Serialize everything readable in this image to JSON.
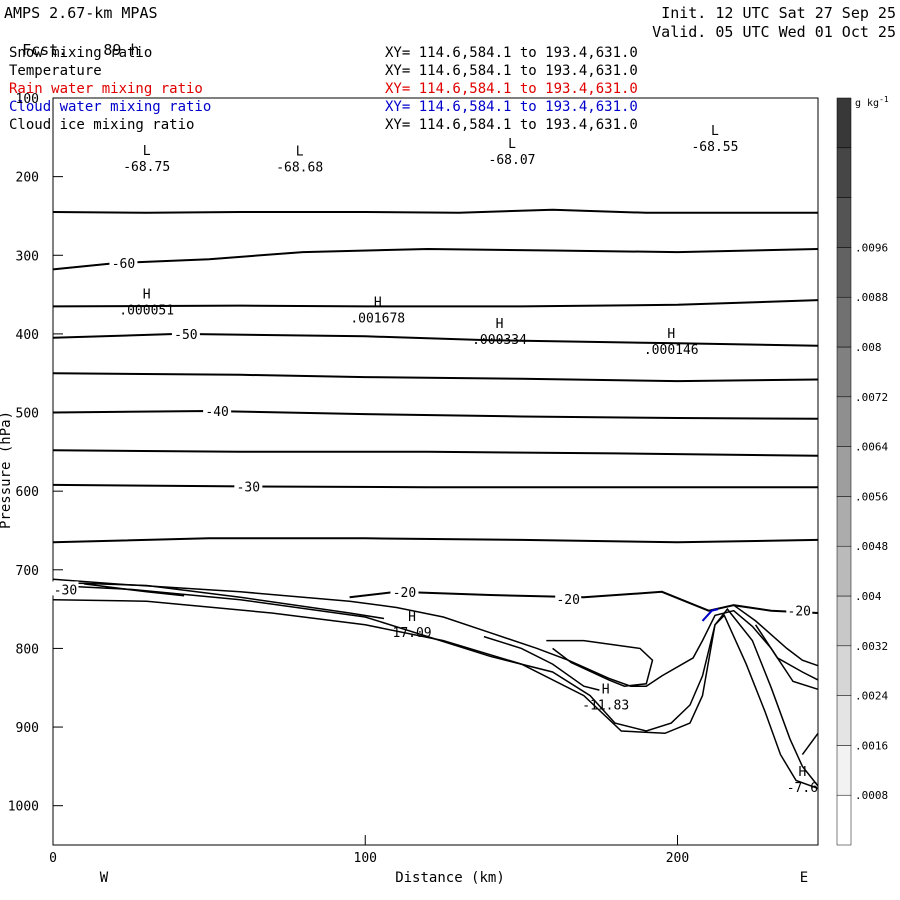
{
  "header": {
    "model": "AMPS 2.67-km MPAS",
    "fcst_label": "Fcst.",
    "fcst_value": "89 h",
    "init": "Init. 12 UTC Sat 27 Sep 25",
    "valid": "Valid. 05 UTC Wed 01 Oct 25"
  },
  "legend": [
    {
      "name": "Snow mixing ratio",
      "xy": "XY= 114.6,584.1 to 193.4,631.0",
      "color": "#000000"
    },
    {
      "name": "Temperature",
      "xy": "XY= 114.6,584.1 to 193.4,631.0",
      "color": "#000000"
    },
    {
      "name": "Rain water mixing ratio",
      "xy": "XY= 114.6,584.1 to 193.4,631.0",
      "color": "#e00000"
    },
    {
      "name": "Cloud water mixing ratio",
      "xy": "XY= 114.6,584.1 to 193.4,631.0",
      "color": "#0000cc"
    },
    {
      "name": "Cloud ice mixing ratio",
      "xy": "XY= 114.6,584.1 to 193.4,631.0",
      "color": "#000000"
    }
  ],
  "chart_data": {
    "type": "line",
    "subtype": "cross-section contour",
    "xlabel": "Distance (km)",
    "ylabel": "Pressure (hPa)",
    "xlim": [
      0,
      245
    ],
    "ylim": [
      1050,
      100
    ],
    "x_ticks": [
      0,
      100,
      200
    ],
    "y_ticks": [
      100,
      200,
      300,
      400,
      500,
      600,
      700,
      800,
      900,
      1000
    ],
    "direction_left": "W",
    "direction_right": "E",
    "colorbar": {
      "unit": "g kg",
      "unit_exp": "-1",
      "ticks": [
        ".0008",
        ".0016",
        ".0024",
        ".0032",
        ".004",
        ".0048",
        ".0056",
        ".0064",
        ".0072",
        ".008",
        ".0088",
        ".0096"
      ],
      "colors": [
        "#ffffff",
        "#f2f2f2",
        "#e4e4e4",
        "#d6d6d6",
        "#c8c8c8",
        "#bababa",
        "#acacac",
        "#9e9e9e",
        "#8f8f8f",
        "#808080",
        "#717171",
        "#626262",
        "#545454",
        "#464646",
        "#383838"
      ]
    },
    "temperature_contours": [
      {
        "label": "",
        "points": [
          [
            0,
            245
          ],
          [
            30,
            246
          ],
          [
            60,
            245
          ],
          [
            100,
            245
          ],
          [
            130,
            246
          ],
          [
            160,
            242
          ],
          [
            190,
            246
          ],
          [
            245,
            246
          ]
        ]
      },
      {
        "label": "-60",
        "points": [
          [
            0,
            318
          ],
          [
            20,
            310
          ],
          [
            50,
            305
          ],
          [
            80,
            296
          ],
          [
            120,
            292
          ],
          [
            160,
            294
          ],
          [
            200,
            296
          ],
          [
            245,
            292
          ]
        ]
      },
      {
        "label": "",
        "points": [
          [
            0,
            365
          ],
          [
            60,
            364
          ],
          [
            100,
            365
          ],
          [
            150,
            365
          ],
          [
            200,
            363
          ],
          [
            245,
            357
          ]
        ]
      },
      {
        "label": "-50",
        "points": [
          [
            0,
            405
          ],
          [
            40,
            400
          ],
          [
            100,
            403
          ],
          [
            140,
            408
          ],
          [
            170,
            410
          ],
          [
            200,
            412
          ],
          [
            245,
            415
          ]
        ]
      },
      {
        "label": "",
        "points": [
          [
            0,
            450
          ],
          [
            60,
            452
          ],
          [
            100,
            455
          ],
          [
            150,
            457
          ],
          [
            200,
            460
          ],
          [
            245,
            458
          ]
        ]
      },
      {
        "label": "-40",
        "points": [
          [
            0,
            500
          ],
          [
            50,
            498
          ],
          [
            100,
            502
          ],
          [
            150,
            505
          ],
          [
            200,
            507
          ],
          [
            245,
            508
          ]
        ]
      },
      {
        "label": "",
        "points": [
          [
            0,
            548
          ],
          [
            60,
            550
          ],
          [
            120,
            550
          ],
          [
            180,
            552
          ],
          [
            245,
            555
          ]
        ]
      },
      {
        "label": "-30",
        "points": [
          [
            0,
            592
          ],
          [
            60,
            594
          ],
          [
            120,
            595
          ],
          [
            180,
            595
          ],
          [
            245,
            595
          ]
        ]
      },
      {
        "label": "",
        "points": [
          [
            0,
            665
          ],
          [
            50,
            660
          ],
          [
            100,
            660
          ],
          [
            150,
            662
          ],
          [
            200,
            665
          ],
          [
            245,
            662
          ]
        ]
      },
      {
        "label": "-20",
        "points": [
          [
            95,
            735
          ],
          [
            110,
            728
          ],
          [
            140,
            732
          ],
          [
            170,
            735
          ],
          [
            195,
            728
          ],
          [
            210,
            752
          ],
          [
            218,
            745
          ],
          [
            230,
            752
          ],
          [
            245,
            755
          ]
        ]
      }
    ],
    "labels": [
      {
        "text": "L",
        "value": "-68.75",
        "x": 30,
        "p": 185
      },
      {
        "text": "L",
        "value": "-68.68",
        "x": 79,
        "p": 186
      },
      {
        "text": "L",
        "value": "-68.07",
        "x": 147,
        "p": 176
      },
      {
        "text": "L",
        "value": "-68.55",
        "x": 212,
        "p": 160
      },
      {
        "text": "H",
        "value": ".000051",
        "x": 30,
        "p": 368
      },
      {
        "text": "H",
        "value": ".001678",
        "x": 104,
        "p": 378
      },
      {
        "text": "H",
        "value": ".000334",
        "x": 143,
        "p": 405
      },
      {
        "text": "H",
        "value": ".000146",
        "x": 198,
        "p": 418
      },
      {
        "text": "H",
        "value": "17.09",
        "x": 115,
        "p": 778
      },
      {
        "text": "H",
        "value": "-11.83",
        "x": 177,
        "p": 870
      },
      {
        "text": "H",
        "value": "-7.6",
        "x": 240,
        "p": 975
      }
    ],
    "extra_labels": [
      {
        "text": "-30",
        "x": 4,
        "p": 725
      },
      {
        "text": "-20",
        "x": 165,
        "p": 737
      },
      {
        "text": "-20",
        "x": 239,
        "p": 752
      }
    ]
  }
}
